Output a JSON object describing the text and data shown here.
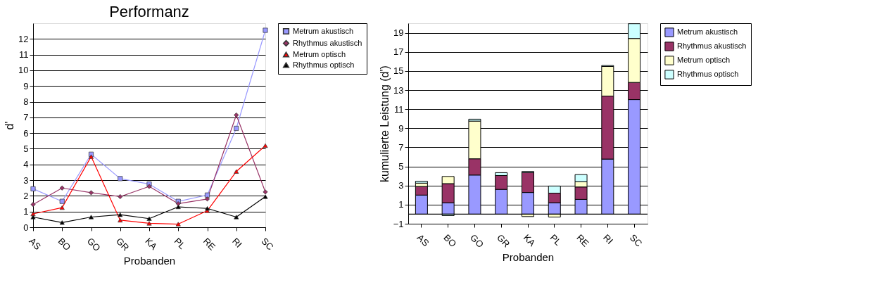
{
  "chart_data": [
    {
      "type": "line",
      "title": "Performanz",
      "xlabel": "Probanden",
      "ylabel": "d'",
      "categories": [
        "AS",
        "BO",
        "GO",
        "GR",
        "KA",
        "PL",
        "RE",
        "RI",
        "SC"
      ],
      "ylim": [
        0,
        13
      ],
      "yticks": [
        0,
        1,
        2,
        3,
        4,
        5,
        6,
        7,
        8,
        9,
        10,
        11,
        12
      ],
      "grid": "y",
      "legend": "right",
      "line_style": "solid",
      "series": [
        {
          "name": "Metrum akustisch",
          "color": "#9999ff",
          "marker": "square",
          "values": [
            2.45,
            1.65,
            4.65,
            3.1,
            2.75,
            1.65,
            2.05,
            6.3,
            12.55
          ]
        },
        {
          "name": "Rhythmus akustisch",
          "color": "#993366",
          "marker": "diamond",
          "values": [
            1.45,
            2.5,
            2.2,
            1.95,
            2.6,
            1.5,
            1.8,
            7.15,
            2.25
          ]
        },
        {
          "name": "Metrum optisch",
          "color": "#ff0000",
          "marker": "triangle",
          "values": [
            0.85,
            1.25,
            4.5,
            0.45,
            0.25,
            0.2,
            1.05,
            3.55,
            5.2
          ]
        },
        {
          "name": "Rhythmus optisch",
          "color": "#000000",
          "marker": "triangle",
          "values": [
            0.65,
            0.3,
            0.65,
            0.8,
            0.55,
            1.3,
            1.2,
            0.65,
            1.95
          ]
        }
      ]
    },
    {
      "type": "bar",
      "stacked": true,
      "xlabel": "Probanden",
      "ylabel": "kumulierte Leistung (d')",
      "categories": [
        "AS",
        "BO",
        "GO",
        "GR",
        "KA",
        "PL",
        "RE",
        "RI",
        "SC"
      ],
      "ylim": [
        -1,
        20
      ],
      "yticks": [
        -1,
        1,
        3,
        5,
        7,
        9,
        11,
        13,
        15,
        17,
        19
      ],
      "grid": "y",
      "legend": "right",
      "ref_lines": [
        {
          "axis": "y",
          "value": 0
        }
      ],
      "series": [
        {
          "name": "Metrum akustisch",
          "color": "#9999ff",
          "values": [
            2.0,
            1.2,
            4.1,
            2.6,
            2.27,
            1.2,
            1.55,
            5.77,
            12.0
          ]
        },
        {
          "name": "Rhythmus akustisch",
          "color": "#993366",
          "values": [
            0.9,
            2.0,
            1.7,
            1.45,
            2.1,
            1.0,
            1.3,
            6.6,
            1.8
          ]
        },
        {
          "name": "Metrum optisch",
          "color": "#ffffcc",
          "values": [
            0.35,
            0.75,
            3.95,
            null,
            -0.25,
            -0.3,
            0.55,
            3.1,
            4.6
          ]
        },
        {
          "name": "Rhythmus optisch",
          "color": "#ccffff",
          "values": [
            0.2,
            -0.15,
            0.2,
            0.3,
            0.1,
            0.75,
            0.75,
            0.1,
            1.55
          ]
        }
      ]
    }
  ]
}
